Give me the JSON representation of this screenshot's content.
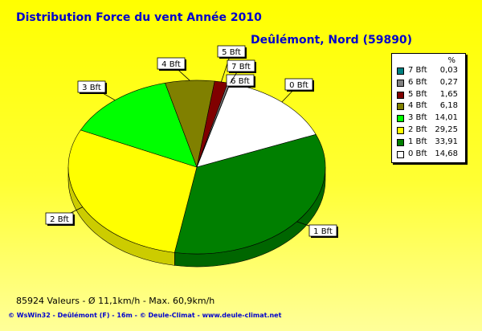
{
  "header": {
    "title": "Distribution Force du vent  Année 2010",
    "station": "Deûlémont, Nord (59890)"
  },
  "stats": "85924 Valeurs   -   Ø 11,1km/h  -  Max. 60,9km/h",
  "footer": "© WsWin32  -  Deûlémont (F) - 16m  -  © Deule-Climat - www.deule-climat.net",
  "legend": {
    "unit": "%"
  },
  "chart_data": {
    "type": "pie",
    "title": "Distribution Force du vent  Année 2010",
    "subtitle": "Deûlémont, Nord (59890)",
    "legend_position": "right",
    "unit": "%",
    "slices": [
      {
        "label": "0 Bft",
        "value": 14.68,
        "display": "14,68",
        "color": "#ffffff"
      },
      {
        "label": "1 Bft",
        "value": 33.91,
        "display": "33,91",
        "color": "#007f00"
      },
      {
        "label": "2 Bft",
        "value": 29.25,
        "display": "29,25",
        "color": "#ffff00"
      },
      {
        "label": "3 Bft",
        "value": 14.01,
        "display": "14,01",
        "color": "#00ff00"
      },
      {
        "label": "4 Bft",
        "value": 6.18,
        "display": "6,18",
        "color": "#808000"
      },
      {
        "label": "5 Bft",
        "value": 1.65,
        "display": "1,65",
        "color": "#800000"
      },
      {
        "label": "6 Bft",
        "value": 0.27,
        "display": "0,27",
        "color": "#808080"
      },
      {
        "label": "7 Bft",
        "value": 0.03,
        "display": "0,03",
        "color": "#008080"
      }
    ]
  }
}
